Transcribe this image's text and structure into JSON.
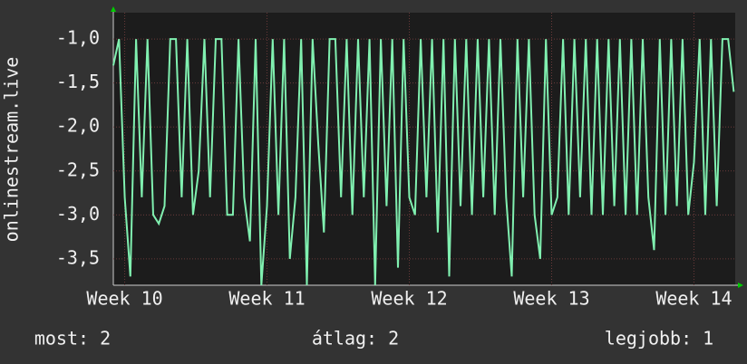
{
  "chart_data": {
    "type": "line",
    "y_label": "onlinestream.live",
    "x": [
      9.92,
      9.96,
      10,
      10.04,
      10.08,
      10.12,
      10.16,
      10.2,
      10.24,
      10.28,
      10.32,
      10.36,
      10.4,
      10.44,
      10.48,
      10.52,
      10.56,
      10.6,
      10.64,
      10.68,
      10.72,
      10.76,
      10.8,
      10.84,
      10.88,
      10.92,
      10.96,
      11,
      11.04,
      11.08,
      11.12,
      11.16,
      11.2,
      11.24,
      11.28,
      11.32,
      11.36,
      11.4,
      11.44,
      11.48,
      11.52,
      11.56,
      11.6,
      11.64,
      11.68,
      11.72,
      11.76,
      11.8,
      11.84,
      11.88,
      11.92,
      11.96,
      12,
      12.04,
      12.08,
      12.12,
      12.16,
      12.2,
      12.24,
      12.28,
      12.32,
      12.36,
      12.4,
      12.44,
      12.48,
      12.52,
      12.56,
      12.6,
      12.64,
      12.68,
      12.72,
      12.76,
      12.8,
      12.84,
      12.88,
      12.92,
      12.96,
      13,
      13.04,
      13.08,
      13.12,
      13.16,
      13.2,
      13.24,
      13.28,
      13.32,
      13.36,
      13.4,
      13.44,
      13.48,
      13.52,
      13.56,
      13.6,
      13.64,
      13.68,
      13.72,
      13.76,
      13.8,
      13.84,
      13.88,
      13.92,
      13.96,
      14,
      14.04,
      14.08,
      14.12,
      14.16,
      14.2,
      14.24,
      14.28
    ],
    "series": [
      {
        "color": "#80f0b0",
        "values": [
          -1.3,
          -1.0,
          -2.8,
          -3.7,
          -1.0,
          -2.8,
          -1.0,
          -3.0,
          -3.1,
          -2.9,
          -1.0,
          -1.0,
          -2.8,
          -1.0,
          -3.0,
          -2.5,
          -1.0,
          -2.8,
          -1.0,
          -1.0,
          -3.0,
          -3.0,
          -1.0,
          -2.8,
          -3.3,
          -1.0,
          -3.8,
          -2.9,
          -1.0,
          -3.0,
          -1.0,
          -3.5,
          -2.8,
          -1.0,
          -3.8,
          -1.0,
          -2.2,
          -3.2,
          -1.0,
          -1.0,
          -2.8,
          -1.0,
          -3.0,
          -1.0,
          -2.8,
          -1.0,
          -3.8,
          -1.0,
          -2.9,
          -1.0,
          -3.6,
          -1.0,
          -2.8,
          -3.0,
          -1.0,
          -2.8,
          -1.0,
          -3.2,
          -1.0,
          -3.7,
          -1.0,
          -2.9,
          -1.0,
          -3.0,
          -1.0,
          -2.8,
          -1.0,
          -3.0,
          -1.0,
          -2.8,
          -3.7,
          -1.0,
          -2.8,
          -1.0,
          -3.0,
          -3.5,
          -1.0,
          -3.0,
          -2.8,
          -1.0,
          -3.0,
          -1.0,
          -2.8,
          -1.0,
          -3.0,
          -1.0,
          -3.0,
          -1.0,
          -2.9,
          -1.0,
          -3.0,
          -1.0,
          -3.0,
          -1.0,
          -2.8,
          -3.4,
          -1.0,
          -3.0,
          -1.0,
          -2.9,
          -1.0,
          -3.0,
          -2.4,
          -1.0,
          -3.0,
          -1.0,
          -2.9,
          -1.0,
          -1.0,
          -1.6
        ]
      }
    ],
    "xlim": [
      9.92,
      14.29
    ],
    "xticks": [
      {
        "value": 10,
        "label": "Week 10"
      },
      {
        "value": 11,
        "label": "Week 11"
      },
      {
        "value": 12,
        "label": "Week 12"
      },
      {
        "value": 13,
        "label": "Week 13"
      },
      {
        "value": 14,
        "label": "Week 14"
      }
    ],
    "ylim": [
      -3.8,
      -0.7
    ],
    "yticks": [
      {
        "value": -1,
        "label": "-1,0"
      },
      {
        "value": -1.5,
        "label": "-1,5"
      },
      {
        "value": -2,
        "label": "-2,0"
      },
      {
        "value": -2.5,
        "label": "-2,5"
      },
      {
        "value": -3,
        "label": "-3,0"
      },
      {
        "value": -3.5,
        "label": "-3,5"
      }
    ],
    "grid": true,
    "footer": [
      "most: 2",
      "átlag: 2",
      "legjobb: 1"
    ]
  }
}
